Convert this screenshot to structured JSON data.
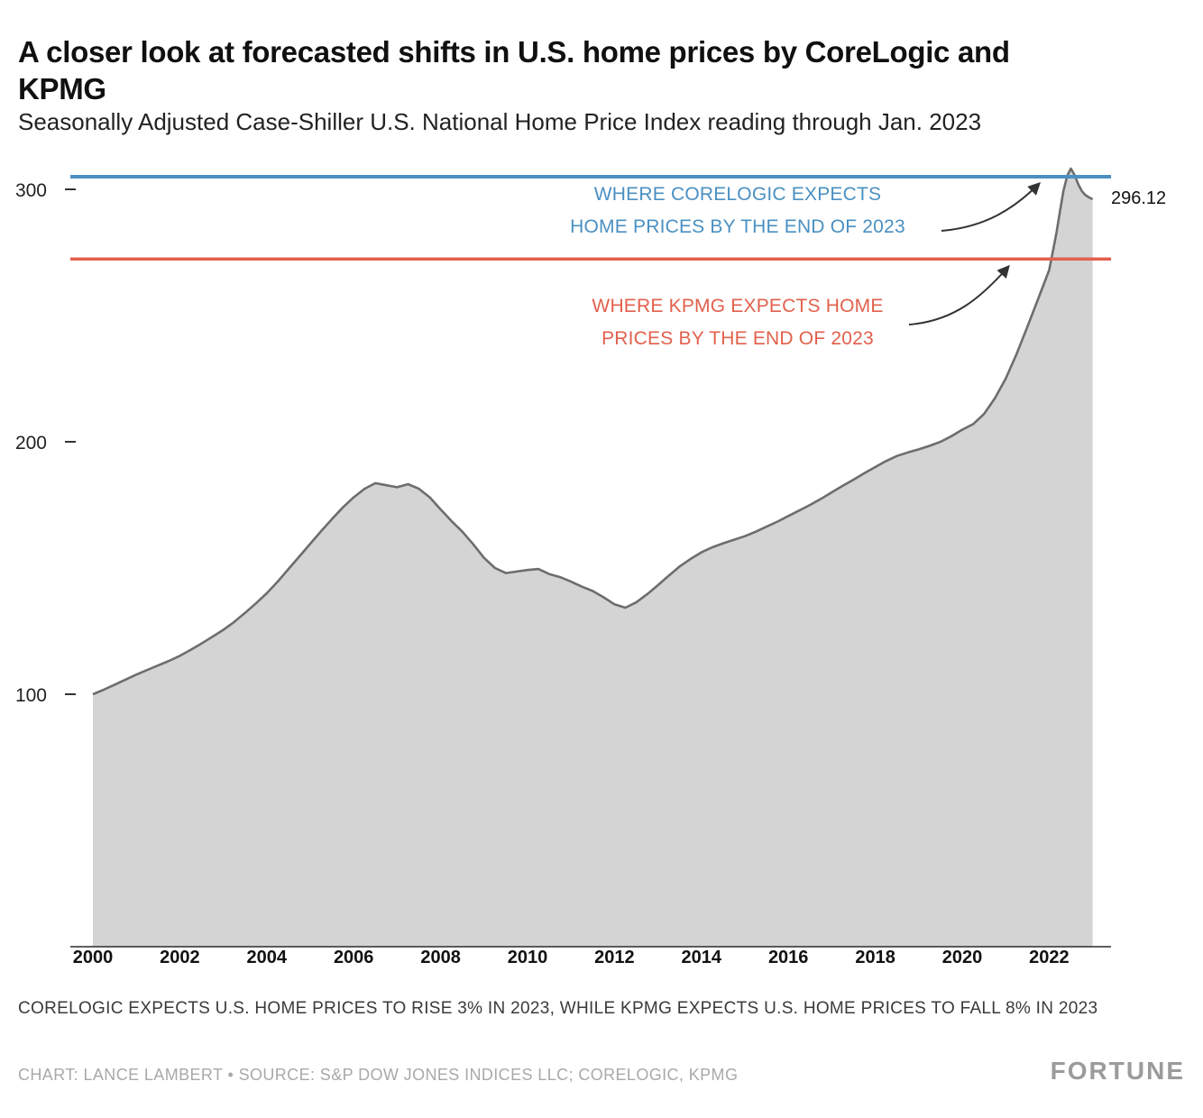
{
  "chart_data": {
    "type": "area",
    "title": "A closer look at forecasted shifts in U.S. home prices by CoreLogic and KPMG",
    "subtitle": "Seasonally Adjusted Case-Shiller U.S. National Home Price Index reading through Jan. 2023",
    "xlabel": "",
    "ylabel": "",
    "x_ticks": [
      2000,
      2002,
      2004,
      2006,
      2008,
      2010,
      2012,
      2014,
      2016,
      2018,
      2020,
      2022
    ],
    "y_ticks": [
      100,
      200,
      300
    ],
    "xlim": [
      2000,
      2023.05
    ],
    "ylim": [
      0,
      310
    ],
    "grid": false,
    "legend": "none",
    "end_label": "296.12",
    "colors": {
      "area_fill": "#d4d4d4",
      "area_line": "#6d6d6d",
      "corelogic_blue": "#4a90c2",
      "kpmg_red": "#e2604c",
      "arrow": "#333333"
    },
    "reference_lines": [
      {
        "name": "corelogic-forecast-line",
        "value": 305,
        "color": "#4a90c2",
        "label": [
          "WHERE CORELOGIC EXPECTS",
          "HOME PRICES BY THE END OF 2023"
        ]
      },
      {
        "name": "kpmg-forecast-line",
        "value": 272.4,
        "color": "#e2604c",
        "label": [
          "WHERE KPMG EXPECTS HOME",
          "PRICES BY THE END OF 2023"
        ]
      }
    ],
    "series": [
      {
        "name": "Seasonally Adjusted Case-Shiller U.S. National Home Price Index",
        "points": [
          [
            2000.0,
            100
          ],
          [
            2000.25,
            101.8
          ],
          [
            2000.5,
            103.8
          ],
          [
            2000.75,
            105.8
          ],
          [
            2001.0,
            107.8
          ],
          [
            2001.25,
            109.6
          ],
          [
            2001.5,
            111.4
          ],
          [
            2001.75,
            113.2
          ],
          [
            2002.0,
            115.2
          ],
          [
            2002.25,
            117.6
          ],
          [
            2002.5,
            120.1
          ],
          [
            2002.75,
            122.8
          ],
          [
            2003.0,
            125.5
          ],
          [
            2003.25,
            128.6
          ],
          [
            2003.5,
            132.2
          ],
          [
            2003.75,
            136.0
          ],
          [
            2004.0,
            140.0
          ],
          [
            2004.25,
            144.6
          ],
          [
            2004.5,
            149.6
          ],
          [
            2004.75,
            154.6
          ],
          [
            2005.0,
            159.6
          ],
          [
            2005.25,
            164.6
          ],
          [
            2005.5,
            169.4
          ],
          [
            2005.75,
            174.0
          ],
          [
            2006.0,
            178.0
          ],
          [
            2006.25,
            181.4
          ],
          [
            2006.5,
            183.6
          ],
          [
            2006.75,
            182.8
          ],
          [
            2007.0,
            182.0
          ],
          [
            2007.25,
            183.2
          ],
          [
            2007.5,
            181.4
          ],
          [
            2007.75,
            178.0
          ],
          [
            2008.0,
            173.2
          ],
          [
            2008.25,
            168.6
          ],
          [
            2008.5,
            164.4
          ],
          [
            2008.75,
            159.4
          ],
          [
            2009.0,
            154.0
          ],
          [
            2009.25,
            150.0
          ],
          [
            2009.5,
            148.0
          ],
          [
            2009.75,
            148.6
          ],
          [
            2010.0,
            149.2
          ],
          [
            2010.25,
            149.6
          ],
          [
            2010.5,
            147.6
          ],
          [
            2010.75,
            146.4
          ],
          [
            2011.0,
            144.6
          ],
          [
            2011.25,
            142.6
          ],
          [
            2011.5,
            140.9
          ],
          [
            2011.75,
            138.4
          ],
          [
            2012.0,
            135.6
          ],
          [
            2012.25,
            134.3
          ],
          [
            2012.5,
            136.4
          ],
          [
            2012.75,
            139.6
          ],
          [
            2013.0,
            143.2
          ],
          [
            2013.25,
            147.0
          ],
          [
            2013.5,
            150.6
          ],
          [
            2013.75,
            153.6
          ],
          [
            2014.0,
            156.2
          ],
          [
            2014.25,
            158.2
          ],
          [
            2014.5,
            159.8
          ],
          [
            2014.75,
            161.2
          ],
          [
            2015.0,
            162.6
          ],
          [
            2015.25,
            164.4
          ],
          [
            2015.5,
            166.4
          ],
          [
            2015.75,
            168.4
          ],
          [
            2016.0,
            170.6
          ],
          [
            2016.25,
            172.8
          ],
          [
            2016.5,
            175.0
          ],
          [
            2016.75,
            177.4
          ],
          [
            2017.0,
            180.0
          ],
          [
            2017.25,
            182.6
          ],
          [
            2017.5,
            185.0
          ],
          [
            2017.75,
            187.6
          ],
          [
            2018.0,
            190.0
          ],
          [
            2018.25,
            192.4
          ],
          [
            2018.5,
            194.4
          ],
          [
            2018.75,
            195.8
          ],
          [
            2019.0,
            197.0
          ],
          [
            2019.25,
            198.4
          ],
          [
            2019.5,
            200.0
          ],
          [
            2019.75,
            202.2
          ],
          [
            2020.0,
            204.8
          ],
          [
            2020.25,
            207.0
          ],
          [
            2020.5,
            211.0
          ],
          [
            2020.75,
            217.2
          ],
          [
            2021.0,
            225.0
          ],
          [
            2021.25,
            234.8
          ],
          [
            2021.5,
            245.6
          ],
          [
            2021.75,
            256.8
          ],
          [
            2022.0,
            268.0
          ],
          [
            2022.08,
            275.0
          ],
          [
            2022.17,
            283.0
          ],
          [
            2022.25,
            291.5
          ],
          [
            2022.33,
            299.5
          ],
          [
            2022.42,
            305.5
          ],
          [
            2022.5,
            308.2
          ],
          [
            2022.58,
            305.8
          ],
          [
            2022.67,
            302.0
          ],
          [
            2022.75,
            299.4
          ],
          [
            2022.83,
            297.8
          ],
          [
            2022.92,
            296.8
          ],
          [
            2023.0,
            296.12
          ]
        ]
      }
    ]
  },
  "footer": {
    "note": "CORELOGIC EXPECTS U.S. HOME PRICES TO RISE 3% IN 2023, WHILE KPMG EXPECTS U.S. HOME PRICES TO FALL 8% IN 2023",
    "credit": "CHART: LANCE LAMBERT • SOURCE: S&P DOW JONES INDICES LLC; CORELOGIC, KPMG",
    "logo": "FORTUNE"
  }
}
